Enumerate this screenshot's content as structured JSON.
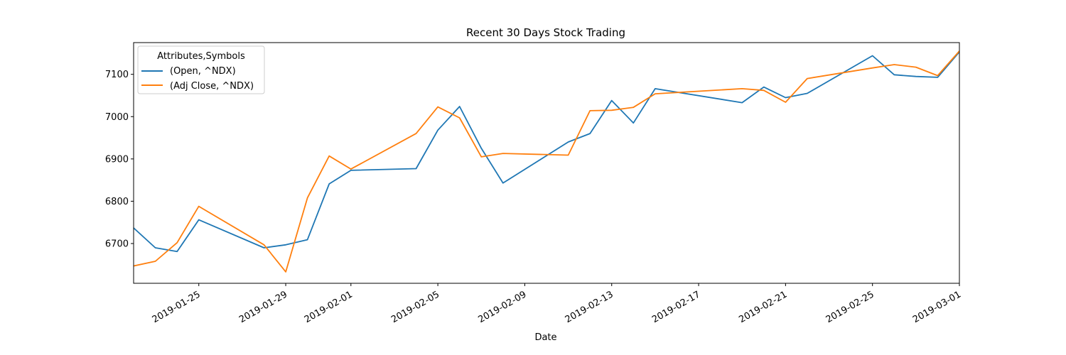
{
  "chart_data": {
    "type": "line",
    "title": "Recent 30 Days Stock Trading",
    "xlabel": "Date",
    "ylabel": "",
    "legend_title": "Attributes,Symbols",
    "legend_position": "top-left",
    "grid": false,
    "x": [
      "2019-01-22",
      "2019-01-23",
      "2019-01-24",
      "2019-01-25",
      "2019-01-28",
      "2019-01-29",
      "2019-01-30",
      "2019-01-31",
      "2019-02-01",
      "2019-02-04",
      "2019-02-05",
      "2019-02-06",
      "2019-02-07",
      "2019-02-08",
      "2019-02-11",
      "2019-02-12",
      "2019-02-13",
      "2019-02-14",
      "2019-02-15",
      "2019-02-19",
      "2019-02-20",
      "2019-02-21",
      "2019-02-22",
      "2019-02-25",
      "2019-02-26",
      "2019-02-27",
      "2019-02-28",
      "2019-03-01"
    ],
    "series": [
      {
        "name": "(Open, ^NDX)",
        "color": "#1f77b4",
        "values": [
          6737,
          6690,
          6681,
          6756,
          6690,
          6697,
          6709,
          6841,
          6873,
          6877,
          6968,
          7024,
          6925,
          6843,
          6940,
          6960,
          7038,
          6985,
          7066,
          7033,
          7070,
          7045,
          7055,
          7144,
          7099,
          7095,
          7093,
          7153
        ]
      },
      {
        "name": "(Adj Close, ^NDX)",
        "color": "#ff7f0e",
        "values": [
          6647,
          6658,
          6702,
          6788,
          6697,
          6633,
          6808,
          6907,
          6876,
          6960,
          7023,
          6997,
          6905,
          6913,
          6909,
          7014,
          7015,
          7022,
          7054,
          7066,
          7062,
          7034,
          7090,
          7115,
          7123,
          7117,
          7097,
          7155
        ]
      }
    ],
    "xlim": [
      "2019-01-22",
      "2019-03-01"
    ],
    "ylim": [
      6606,
      7175
    ],
    "xticks": [
      "2019-01-25",
      "2019-01-29",
      "2019-02-01",
      "2019-02-05",
      "2019-02-09",
      "2019-02-13",
      "2019-02-17",
      "2019-02-21",
      "2019-02-25",
      "2019-03-01"
    ],
    "yticks": [
      6700,
      6800,
      6900,
      7000,
      7100
    ]
  }
}
